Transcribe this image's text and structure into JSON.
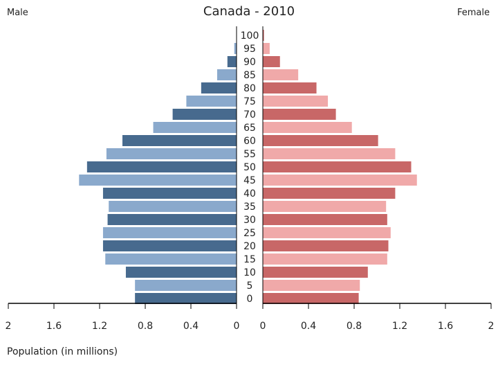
{
  "labels": {
    "male": "Male",
    "female": "Female"
  },
  "chart_data": {
    "type": "bar",
    "title": "Canada - 2010",
    "xlabel": "Population (in millions)",
    "orientation": "horizontal",
    "categories": [
      "0",
      "5",
      "10",
      "15",
      "20",
      "25",
      "30",
      "35",
      "40",
      "45",
      "50",
      "55",
      "60",
      "65",
      "70",
      "75",
      "80",
      "85",
      "90",
      "95",
      "100"
    ],
    "series": [
      {
        "name": "Male",
        "values": [
          0.89,
          0.89,
          0.97,
          1.15,
          1.17,
          1.17,
          1.13,
          1.12,
          1.17,
          1.38,
          1.31,
          1.14,
          1.0,
          0.73,
          0.56,
          0.44,
          0.31,
          0.17,
          0.08,
          0.02,
          0.0
        ]
      },
      {
        "name": "Female",
        "values": [
          0.84,
          0.85,
          0.92,
          1.09,
          1.1,
          1.12,
          1.09,
          1.08,
          1.16,
          1.35,
          1.3,
          1.16,
          1.01,
          0.78,
          0.64,
          0.57,
          0.47,
          0.31,
          0.15,
          0.06,
          0.01
        ]
      }
    ],
    "male_ticks": [
      "2",
      "1.6",
      "1.2",
      "0.8",
      "0.4",
      "0"
    ],
    "female_ticks": [
      "0",
      "0.4",
      "0.8",
      "1.2",
      "1.6",
      "2"
    ],
    "xlim": [
      0,
      2
    ],
    "colors": {
      "male_dark": "#476a8e",
      "male_light": "#8aa9cc",
      "female_dark": "#c86767",
      "female_light": "#f0a9a9"
    }
  }
}
